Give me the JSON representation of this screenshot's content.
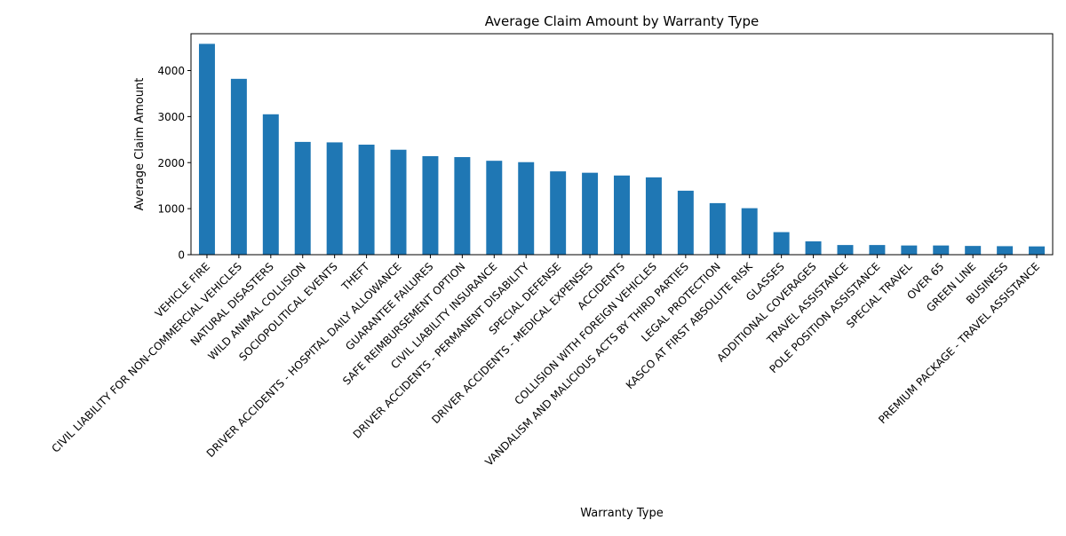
{
  "chart_data": {
    "type": "bar",
    "title": "Average Claim Amount by Warranty Type",
    "xlabel": "Warranty Type",
    "ylabel": "Average Claim Amount",
    "ylim": [
      0,
      4800
    ],
    "yticks": [
      0,
      1000,
      2000,
      3000,
      4000
    ],
    "grid": false,
    "bar_color": "#1f77b4",
    "categories": [
      "VEHICLE FIRE",
      "CIVIL LIABILITY FOR NON-COMMERCIAL VEHICLES",
      "NATURAL DISASTERS",
      "WILD ANIMAL COLLISION",
      "SOCIOPOLITICAL EVENTS",
      "THEFT",
      "DRIVER ACCIDENTS - HOSPITAL DAILY ALLOWANCE",
      "GUARANTEE FAILURES",
      "SAFE REIMBURSEMENT OPTION",
      "CIVIL LIABILITY INSURANCE",
      "DRIVER ACCIDENTS - PERMANENT DISABILITY",
      "SPECIAL DEFENSE",
      "DRIVER ACCIDENTS - MEDICAL EXPENSES",
      "ACCIDENTS",
      "COLLISION WITH FOREIGN VEHICLES",
      "VANDALISM AND MALICIOUS ACTS BY THIRD PARTIES",
      "LEGAL PROTECTION",
      "KASCO AT FIRST ABSOLUTE RISK",
      "GLASSES",
      "ADDITIONAL COVERAGES",
      "TRAVEL ASSISTANCE",
      "POLE POSITION ASSISTANCE",
      "SPECIAL TRAVEL",
      "OVER 65",
      "GREEN LINE",
      "BUSINESS",
      "PREMIUM PACKAGE - TRAVEL ASSISTANCE"
    ],
    "values": [
      4580,
      3820,
      3050,
      2450,
      2440,
      2390,
      2280,
      2140,
      2120,
      2040,
      2010,
      1810,
      1780,
      1720,
      1680,
      1390,
      1120,
      1010,
      490,
      290,
      210,
      210,
      200,
      200,
      190,
      185,
      180
    ]
  }
}
